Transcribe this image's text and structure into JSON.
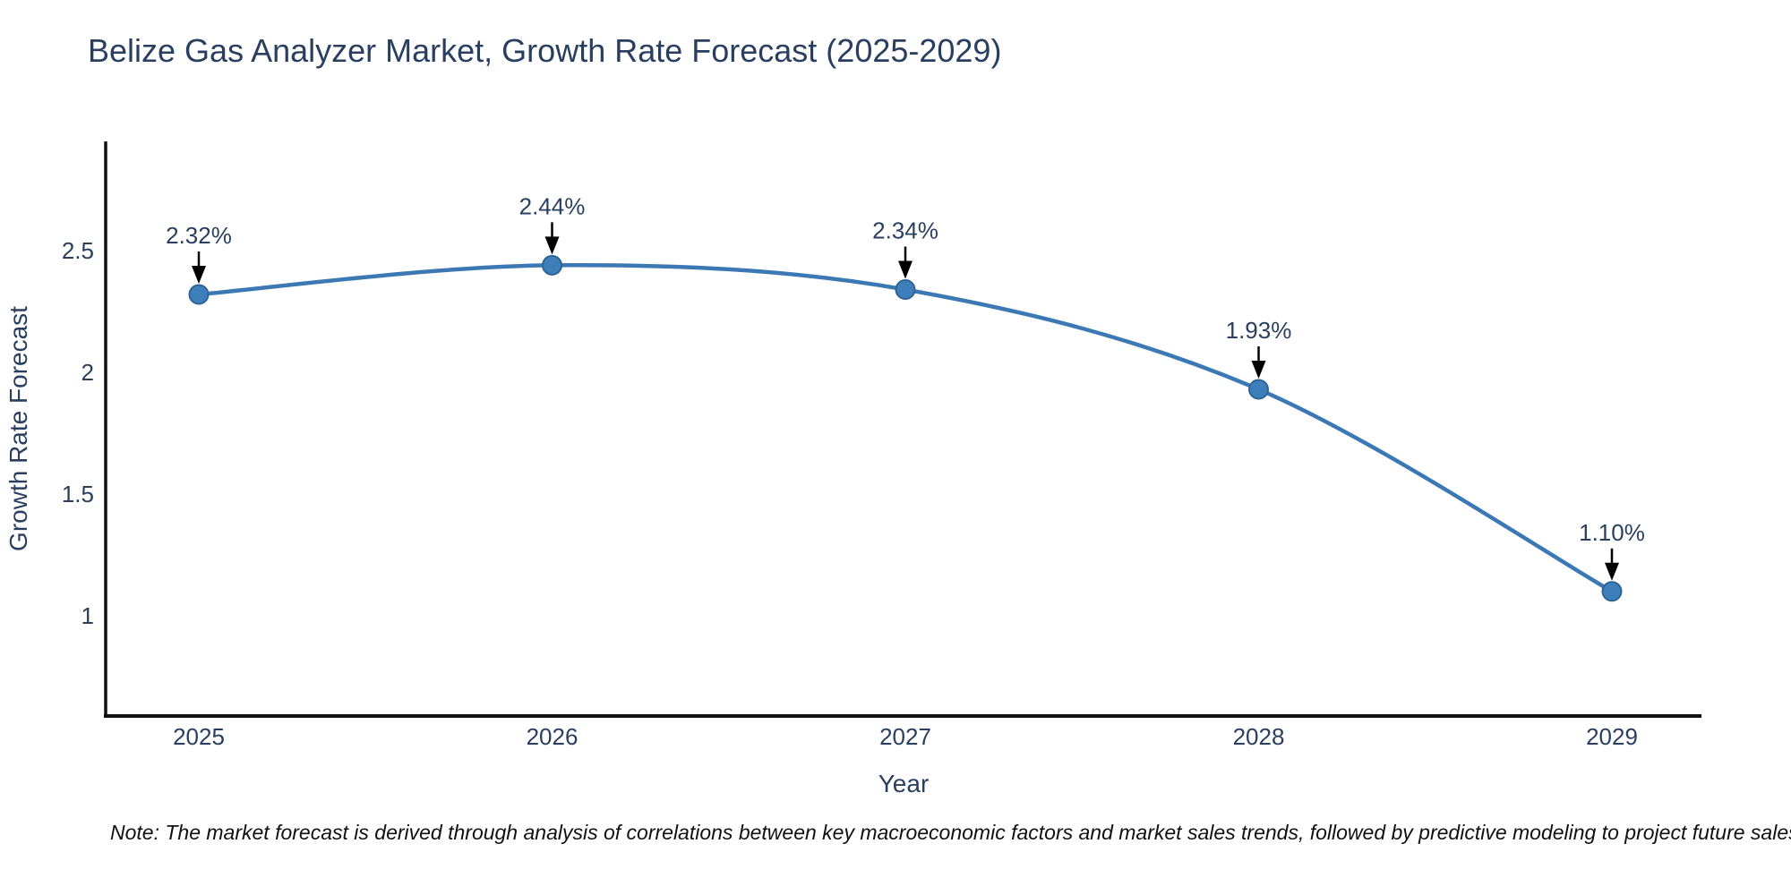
{
  "title": "Belize Gas Analyzer Market, Growth Rate Forecast (2025-2029)",
  "note": "Note: The market forecast is derived through analysis of correlations between key macroeconomic factors and market sales trends, followed by predictive modeling to project future sales",
  "colors": {
    "title_text": "#2a3f5f",
    "tick_text": "#2a3f5f",
    "axis_line": "#111111",
    "series_line": "#3c79b4",
    "marker_fill": "#3d7ebb",
    "marker_stroke": "#2f6596",
    "annotation_text": "#2a3f5f",
    "arrow": "#000000",
    "note_text": "#111111",
    "background": "#ffffff"
  },
  "chart_data": {
    "type": "line",
    "title": "Belize Gas Analyzer Market, Growth Rate Forecast (2025-2029)",
    "xlabel": "Year",
    "ylabel": "Growth Rate Forecast",
    "x": [
      2025,
      2026,
      2027,
      2028,
      2029
    ],
    "values": [
      2.32,
      2.44,
      2.34,
      1.93,
      1.1
    ],
    "point_labels": [
      "2.32%",
      "2.44%",
      "2.34%",
      "1.93%",
      "1.10%"
    ],
    "series_name": "Growth Rate Forecast",
    "yticks": [
      2.5,
      2,
      1.5,
      1
    ],
    "xticks": [
      "2025",
      "2026",
      "2027",
      "2028",
      "2029"
    ],
    "ylim": [
      0.59,
      2.94
    ],
    "line_shape": "spline",
    "grid": false,
    "legend_position": "none",
    "annotations_have_arrows": true
  }
}
